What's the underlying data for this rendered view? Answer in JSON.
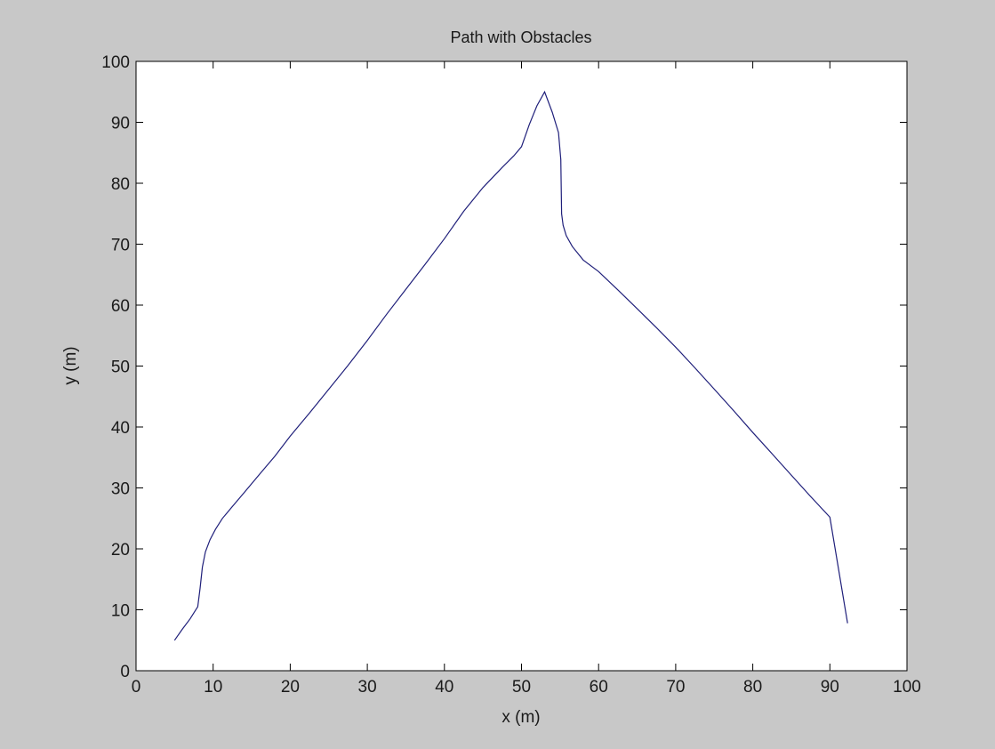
{
  "chart_data": {
    "type": "line",
    "title": "Path with Obstacles",
    "xlabel": "x (m)",
    "ylabel": "y (m)",
    "xlim": [
      0,
      100
    ],
    "ylim": [
      0,
      100
    ],
    "xticks": [
      "0",
      "10",
      "20",
      "30",
      "40",
      "50",
      "60",
      "70",
      "80",
      "90",
      "100"
    ],
    "yticks": [
      "0",
      "10",
      "20",
      "30",
      "40",
      "50",
      "60",
      "70",
      "80",
      "90",
      "100"
    ],
    "grid": false,
    "legend": "none",
    "colors": {
      "figure_background": "#c8c8c8",
      "axes_background": "#ffffff",
      "line": "#1f1f7a"
    },
    "series": [
      {
        "x": [
          5,
          6,
          7,
          8,
          8.3,
          8.6,
          9,
          9.6,
          10.3,
          11.2,
          12.4,
          14,
          16,
          18,
          20,
          22.5,
          25,
          27.5,
          30,
          32.5,
          35,
          37.5,
          40,
          42.5,
          45,
          47.5,
          49,
          50,
          51,
          52,
          53,
          54,
          54.8,
          55.1,
          55.2,
          55.4,
          55.8,
          56.6,
          58,
          60,
          62.5,
          65,
          67.5,
          70,
          72.5,
          75,
          77.5,
          80,
          82.5,
          85,
          87.5,
          90,
          92.3
        ],
        "y": [
          5,
          6.8,
          8.5,
          10.5,
          13.5,
          17,
          19.5,
          21.5,
          23.2,
          25,
          26.8,
          29.2,
          32.2,
          35.2,
          38.5,
          42.3,
          46.2,
          50.1,
          54.2,
          58.5,
          62.6,
          66.7,
          70.9,
          75.4,
          79.3,
          82.6,
          84.5,
          86,
          89.6,
          92.7,
          95,
          91.6,
          88.3,
          83.9,
          75,
          73.1,
          71.4,
          69.6,
          67.4,
          65.5,
          62.5,
          59.4,
          56.3,
          53.1,
          49.7,
          46.2,
          42.7,
          39.1,
          35.6,
          32.1,
          28.6,
          25.2,
          7.8
        ]
      }
    ]
  }
}
